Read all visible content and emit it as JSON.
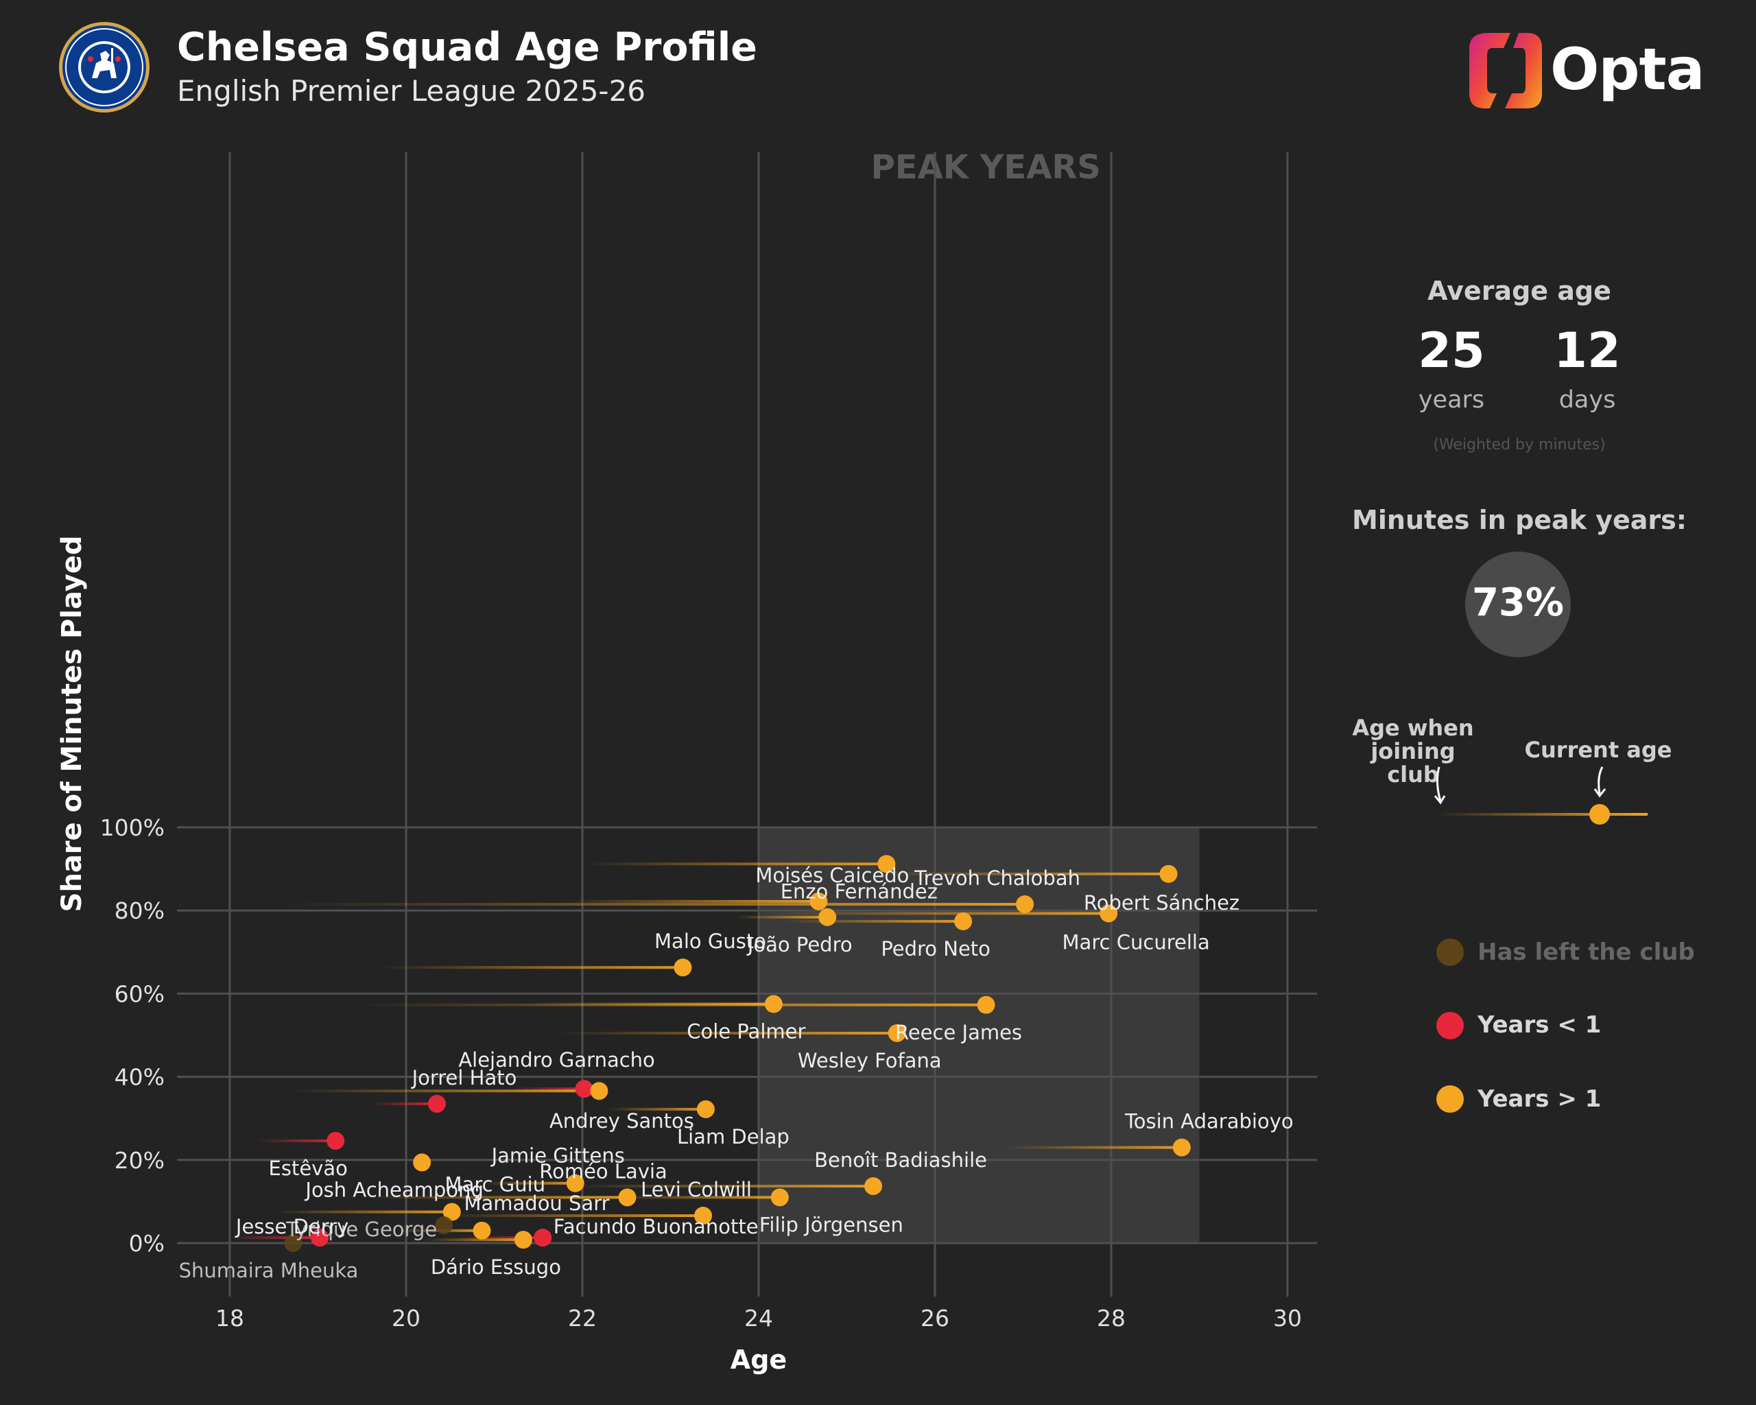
{
  "header": {
    "title": "Chelsea Squad Age Profile",
    "subtitle": "English Premier League 2025-26",
    "opta": "Opta",
    "badge_text": "CHELSEA FOOTBALL CLUB"
  },
  "colors": {
    "background": "#232323",
    "peak_band": "#3a3a3a",
    "years_gt_1": "#f5a623",
    "years_lt_1": "#e8283a",
    "has_left": "#5e4417"
  },
  "chart_data": {
    "type": "scatter",
    "xlabel": "Age",
    "ylabel": "Share of Minutes Played",
    "xlim": [
      17.3,
      30.4
    ],
    "ylim": [
      0,
      100
    ],
    "x_ticks": [
      18,
      20,
      22,
      24,
      26,
      28,
      30
    ],
    "y_ticks": [
      0,
      20,
      40,
      60,
      80,
      100
    ],
    "y_tick_labels": [
      "0%",
      "20%",
      "40%",
      "60%",
      "80%",
      "100%"
    ],
    "grid": true,
    "peak_band": {
      "label": "PEAK YEARS",
      "from": 24,
      "to": 29
    },
    "players": [
      {
        "name": "Enzo Fernández",
        "joined": 22.0,
        "age": 25.45,
        "share": 91.2,
        "status": "gt1"
      },
      {
        "name": "Robert Sánchez",
        "joined": 25.3,
        "age": 28.65,
        "share": 88.8,
        "status": "gt1"
      },
      {
        "name": "Moisés Caicedo",
        "joined": 21.8,
        "age": 24.68,
        "share": 82.2,
        "status": "gt1"
      },
      {
        "name": "Trevoh Chalobah",
        "joined": 18.6,
        "age": 27.02,
        "share": 81.5,
        "status": "gt1"
      },
      {
        "name": "Marc Cucurella",
        "joined": 24.0,
        "age": 27.97,
        "share": 79.3,
        "status": "gt1"
      },
      {
        "name": "João Pedro",
        "joined": 23.75,
        "age": 24.78,
        "share": 78.4,
        "status": "gt1"
      },
      {
        "name": "Pedro Neto",
        "joined": 24.3,
        "age": 26.32,
        "share": 77.4,
        "status": "gt1"
      },
      {
        "name": "Malo Gusto",
        "joined": 19.7,
        "age": 23.14,
        "share": 66.3,
        "status": "gt1"
      },
      {
        "name": "Cole Palmer",
        "joined": 21.4,
        "age": 24.17,
        "share": 57.5,
        "status": "gt1"
      },
      {
        "name": "Reece James",
        "joined": 19.4,
        "age": 26.58,
        "share": 57.3,
        "status": "gt1"
      },
      {
        "name": "Wesley Fofana",
        "joined": 21.7,
        "age": 25.57,
        "share": 50.5,
        "status": "gt1"
      },
      {
        "name": "Alejandro Garnacho",
        "joined": 21.2,
        "age": 22.02,
        "share": 37.1,
        "status": "lt1"
      },
      {
        "name": "Andrey Santos",
        "joined": 18.7,
        "age": 22.19,
        "share": 36.6,
        "status": "gt1"
      },
      {
        "name": "Jorrel Hato",
        "joined": 19.6,
        "age": 20.35,
        "share": 33.5,
        "status": "lt1"
      },
      {
        "name": "Liam Delap",
        "joined": 22.3,
        "age": 23.4,
        "share": 32.2,
        "status": "gt1"
      },
      {
        "name": "Estêvão",
        "joined": 18.3,
        "age": 19.2,
        "share": 24.6,
        "status": "lt1"
      },
      {
        "name": "Tosin Adarabioyo",
        "joined": 26.8,
        "age": 28.8,
        "share": 23.0,
        "status": "gt1"
      },
      {
        "name": "Josh Acheampong",
        "joined": null,
        "age": 20.18,
        "share": 19.4,
        "status": "gt1"
      },
      {
        "name": "Jamie Gittens",
        "joined": 20.9,
        "age": 21.92,
        "share": 14.4,
        "status": "gt1"
      },
      {
        "name": "Benoît Badiashile",
        "joined": 21.9,
        "age": 25.3,
        "share": 13.7,
        "status": "gt1"
      },
      {
        "name": "Roméo Lavia",
        "joined": 19.6,
        "age": 22.51,
        "share": 11.0,
        "status": "gt1"
      },
      {
        "name": "Filip Jörgensen",
        "joined": 22.4,
        "age": 24.24,
        "share": 11.0,
        "status": "gt1"
      },
      {
        "name": "Marc Guiu",
        "joined": 18.5,
        "age": 20.52,
        "share": 7.5,
        "status": "gt1"
      },
      {
        "name": "Levi Colwill",
        "joined": 20.4,
        "age": 23.37,
        "share": 6.6,
        "status": "gt1"
      },
      {
        "name": "Tyrique George",
        "joined": null,
        "age": 20.43,
        "share": 4.3,
        "status": "left"
      },
      {
        "name": "Mamadou Sarr",
        "joined": 19.9,
        "age": 20.86,
        "share": 3.0,
        "status": "gt1"
      },
      {
        "name": "Jesse Derry",
        "joined": 18.0,
        "age": 19.02,
        "share": 1.3,
        "status": "lt1"
      },
      {
        "name": "Facundo Buonanotte",
        "joined": 20.6,
        "age": 21.55,
        "share": 1.3,
        "status": "lt1"
      },
      {
        "name": "Dário Essugo",
        "joined": 20.2,
        "age": 21.33,
        "share": 0.8,
        "status": "gt1"
      },
      {
        "name": "Shumaira Mheuka",
        "joined": null,
        "age": 18.72,
        "share": 0.0,
        "status": "left"
      }
    ]
  },
  "panel": {
    "average_age_title": "Average age",
    "years_value": "25",
    "years_unit": "years",
    "days_value": "12",
    "days_unit": "days",
    "weighted_note": "(Weighted by minutes)",
    "peak_title": "Minutes in peak years:",
    "peak_value": "73%",
    "key_joined": "Age when joining club",
    "key_current": "Current age",
    "legend": {
      "has_left": "Has left the club",
      "years_lt_1": "Years < 1",
      "years_gt_1": "Years > 1"
    }
  }
}
